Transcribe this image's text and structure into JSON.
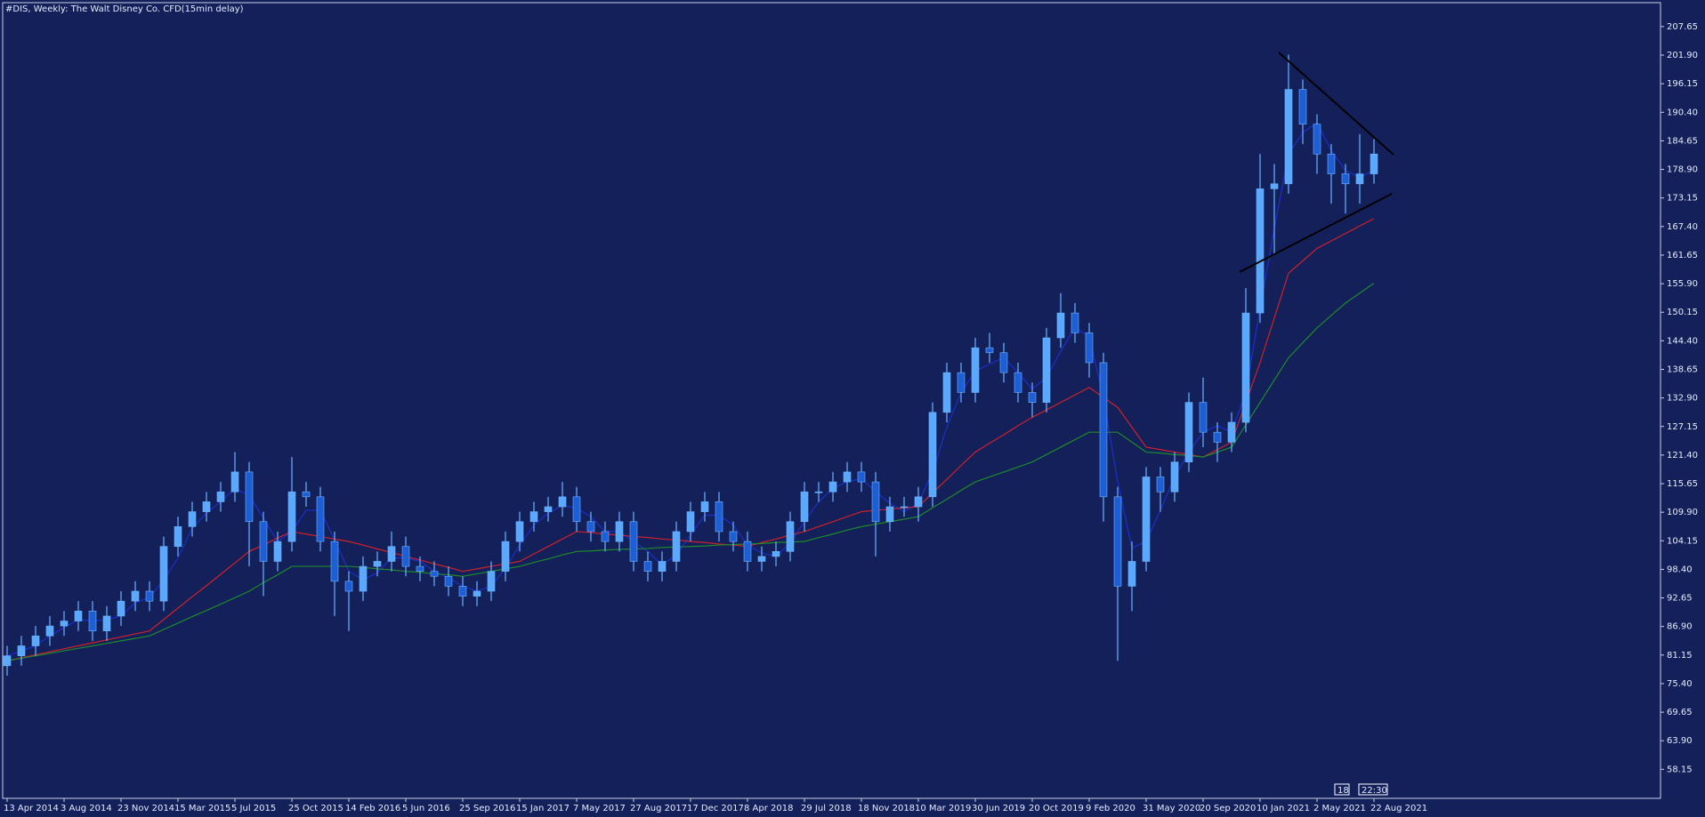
{
  "chart_data": {
    "type": "candlestick",
    "title": "#DIS, Weekly:  The Walt Disney Co. CFD(15min delay)",
    "categories": [
      "13 Apr 2014",
      null,
      null,
      null,
      "3 Aug 2014",
      null,
      null,
      null,
      "23 Nov 2014",
      null,
      null,
      null,
      "15 Mar 2015",
      null,
      null,
      null,
      "5 Jul 2015",
      null,
      null,
      null,
      "25 Oct 2015",
      null,
      null,
      null,
      "14 Feb 2016",
      null,
      null,
      null,
      "5 Jun 2016",
      null,
      null,
      null,
      "25 Sep 2016",
      null,
      null,
      null,
      "15 Jan 2017",
      null,
      null,
      null,
      "7 May 2017",
      null,
      null,
      null,
      "27 Aug 2017",
      null,
      null,
      null,
      "17 Dec 2017",
      null,
      null,
      null,
      "8 Apr 2018",
      null,
      null,
      null,
      "29 Jul 2018",
      null,
      null,
      null,
      "18 Nov 2018",
      null,
      null,
      null,
      "10 Mar 2019",
      null,
      null,
      null,
      "30 Jun 2019",
      null,
      null,
      null,
      "20 Oct 2019",
      null,
      null,
      null,
      "9 Feb 2020",
      null,
      null,
      null,
      "31 May 2020",
      null,
      null,
      null,
      "20 Sep 2020",
      null,
      null,
      null,
      "10 Jan 2021",
      null,
      null,
      null,
      "2 May 2021",
      null,
      null,
      null,
      "22 Aug 2021"
    ],
    "open": [
      79,
      81,
      83,
      85,
      87,
      88,
      90,
      86,
      89,
      92,
      94,
      92,
      103,
      107,
      110,
      112,
      114,
      118,
      108,
      100,
      104,
      114,
      113,
      104,
      96,
      94,
      99,
      100,
      103,
      99,
      98,
      97,
      95,
      93,
      94,
      98,
      104,
      108,
      110,
      111,
      113,
      108,
      106,
      104,
      108,
      100,
      98,
      100,
      106,
      110,
      112,
      106,
      104,
      100,
      101,
      102,
      108,
      114,
      114,
      116,
      118,
      116,
      108,
      111,
      111,
      113,
      130,
      138,
      134,
      143,
      142,
      138,
      134,
      132,
      145,
      150,
      146,
      140,
      113,
      95,
      100,
      117,
      114,
      120,
      132,
      126,
      124,
      128,
      150,
      175,
      176,
      195,
      188,
      182,
      178,
      176,
      178
    ],
    "high": [
      83,
      85,
      87,
      89,
      90,
      92,
      92,
      91,
      94,
      96,
      96,
      105,
      109,
      112,
      114,
      116,
      122,
      120,
      110,
      106,
      121,
      116,
      115,
      106,
      98,
      101,
      102,
      106,
      105,
      101,
      100,
      99,
      97,
      96,
      100,
      106,
      110,
      112,
      113,
      116,
      115,
      110,
      108,
      110,
      110,
      102,
      102,
      108,
      112,
      114,
      114,
      108,
      106,
      103,
      104,
      110,
      116,
      116,
      118,
      120,
      120,
      118,
      113,
      113,
      115,
      132,
      140,
      140,
      145,
      146,
      144,
      140,
      136,
      147,
      154,
      152,
      148,
      142,
      115,
      104,
      119,
      119,
      122,
      134,
      137,
      128,
      130,
      155,
      182,
      180,
      202,
      197,
      190,
      184,
      180,
      186,
      185
    ],
    "low": [
      77,
      79,
      81,
      83,
      85,
      86,
      84,
      84,
      87,
      90,
      90,
      90,
      101,
      105,
      108,
      110,
      112,
      99,
      93,
      98,
      102,
      111,
      102,
      89,
      86,
      92,
      97,
      98,
      97,
      96,
      95,
      93,
      91,
      91,
      92,
      96,
      102,
      106,
      108,
      109,
      106,
      104,
      102,
      102,
      98,
      96,
      96,
      98,
      104,
      108,
      104,
      102,
      98,
      98,
      99,
      100,
      106,
      112,
      112,
      114,
      114,
      101,
      106,
      109,
      108,
      111,
      128,
      132,
      132,
      140,
      136,
      132,
      129,
      130,
      143,
      144,
      137,
      108,
      80,
      90,
      98,
      110,
      112,
      118,
      123,
      120,
      122,
      126,
      148,
      162,
      174,
      184,
      178,
      172,
      170,
      172,
      176
    ],
    "close": [
      81,
      83,
      85,
      87,
      88,
      90,
      86,
      89,
      92,
      94,
      92,
      103,
      107,
      110,
      112,
      114,
      118,
      108,
      100,
      104,
      114,
      113,
      104,
      96,
      94,
      99,
      100,
      103,
      99,
      98,
      97,
      95,
      93,
      94,
      98,
      104,
      108,
      110,
      111,
      113,
      108,
      106,
      104,
      108,
      100,
      98,
      100,
      106,
      110,
      112,
      106,
      104,
      100,
      101,
      102,
      108,
      114,
      114,
      116,
      118,
      116,
      108,
      111,
      111,
      113,
      130,
      138,
      134,
      143,
      142,
      138,
      134,
      132,
      145,
      150,
      146,
      140,
      113,
      95,
      100,
      117,
      114,
      120,
      132,
      126,
      124,
      128,
      150,
      175,
      176,
      195,
      188,
      182,
      178,
      176,
      178,
      182
    ],
    "up_color": "#5aa8ff",
    "down_color": "#1f5fd6",
    "wick_color": "#6fb4ff",
    "series": [
      {
        "color": "#1b2fd0",
        "values": [
          81,
          82,
          83,
          85,
          86.7,
          88.3,
          88,
          88.3,
          89,
          91.7,
          92.7,
          96.3,
          100.7,
          106.7,
          109.7,
          112,
          114.7,
          113.3,
          108.7,
          104,
          106,
          110.3,
          110.3,
          104.3,
          98,
          96.3,
          97.7,
          100.7,
          100.7,
          100,
          98,
          96.7,
          95,
          94,
          95,
          98.7,
          103.3,
          107.3,
          109.7,
          111.3,
          110.7,
          109,
          106,
          106,
          104,
          102,
          99.3,
          101.3,
          105.3,
          109.3,
          109.3,
          107.3,
          103.3,
          101.7,
          101,
          103.7,
          108,
          112,
          114.7,
          116,
          116.7,
          114,
          111.7,
          110,
          111.7,
          118,
          127,
          134,
          138.3,
          139.7,
          141,
          138,
          134.7,
          137,
          142.3,
          147,
          145.3,
          133,
          116,
          102.7,
          104,
          110.3,
          117,
          122,
          126,
          127.3,
          126,
          134,
          151,
          167,
          182,
          186.3,
          188.3,
          182.7,
          178.7,
          177.3,
          178.7
        ]
      },
      {
        "color": "#d0202a",
        "values": [
          80,
          80.6,
          81.2,
          81.8,
          82.4,
          83,
          83.6,
          84.2,
          84.8,
          85.4,
          86,
          88.3,
          90.6,
          92.9,
          95.1,
          97.4,
          99.7,
          102,
          103.3,
          104.7,
          106,
          105.5,
          105,
          104.5,
          104,
          103.3,
          102.5,
          101.8,
          101,
          100.3,
          99.5,
          98.8,
          98,
          98.5,
          99,
          99.5,
          100,
          101.5,
          103,
          104.5,
          106,
          105.8,
          105.5,
          105.3,
          105,
          104.8,
          104.5,
          104.3,
          104,
          103.8,
          103.5,
          103.3,
          103,
          103.8,
          104.5,
          105.3,
          106,
          107,
          108,
          109,
          110,
          110.3,
          110.5,
          110.8,
          111,
          113.8,
          116.5,
          119.3,
          122,
          123.8,
          125.5,
          127.3,
          129,
          130.5,
          132,
          133.5,
          135,
          133,
          131,
          127,
          123,
          122.5,
          122,
          121.5,
          121,
          122.5,
          124,
          132,
          140,
          149,
          158,
          160.5,
          163,
          164.5,
          166,
          167.5,
          169
        ]
      },
      {
        "color": "#1e8a2a",
        "values": [
          80,
          80.5,
          81,
          81.5,
          82,
          82.5,
          83,
          83.5,
          84,
          84.5,
          85,
          86.3,
          87.6,
          88.9,
          90.1,
          91.4,
          92.7,
          94,
          95.7,
          97.3,
          99,
          99,
          99,
          99,
          99,
          98.8,
          98.5,
          98.3,
          98,
          97.8,
          97.5,
          97.3,
          97,
          97.5,
          98,
          98.5,
          99,
          99.8,
          100.5,
          101.3,
          102,
          102.1,
          102.3,
          102.4,
          102.5,
          102.6,
          102.8,
          102.9,
          103,
          103.1,
          103.3,
          103.4,
          103.5,
          103.6,
          103.8,
          103.9,
          104,
          104.8,
          105.5,
          106.3,
          107,
          107.5,
          108,
          108.5,
          109,
          110.8,
          112.5,
          114.3,
          116,
          117,
          118,
          119,
          120,
          121.5,
          123,
          124.5,
          126,
          126,
          126,
          124,
          122,
          121.8,
          121.5,
          121.3,
          121,
          122,
          123,
          127.5,
          132,
          136.5,
          141,
          144,
          147,
          149.5,
          152,
          154,
          156
        ]
      }
    ],
    "ylim": [
      52.31,
      212.46
    ],
    "yticks": [
      207.65,
      {
        "value": 201.9,
        "label": "201.90"
      },
      196.15,
      {
        "value": 190.4,
        "label": "190.40"
      },
      184.65,
      {
        "value": 178.9,
        "label": "178.90"
      },
      173.15,
      {
        "value": 167.4,
        "label": "167.40"
      },
      161.65,
      {
        "value": 155.9,
        "label": "155.90"
      },
      150.15,
      {
        "value": 144.4,
        "label": "144.40"
      },
      138.65,
      {
        "value": 132.9,
        "label": "132.90"
      },
      127.15,
      {
        "value": 121.4,
        "label": "121.40"
      },
      115.65,
      {
        "value": 109.9,
        "label": "109.90"
      },
      104.15,
      {
        "value": 98.4,
        "label": "98.40"
      },
      92.65,
      {
        "value": 86.9,
        "label": "86.90"
      },
      81.15,
      {
        "value": 75.4,
        "label": "75.40"
      },
      69.65,
      {
        "value": 63.9,
        "label": "63.90"
      },
      58.15
    ],
    "grid": false,
    "date_marker": "18",
    "time_marker": "22:30"
  }
}
